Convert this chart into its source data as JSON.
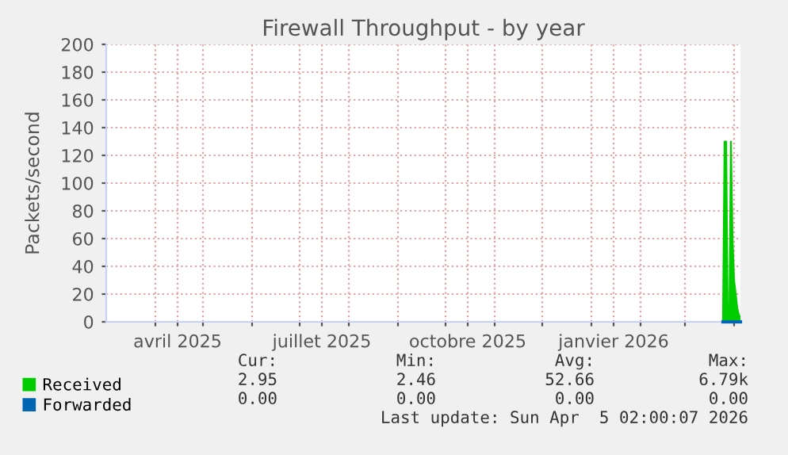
{
  "chart_data": {
    "type": "area",
    "title": "Firewall Throughput - by year",
    "ylabel": "Packets/second",
    "x": [
      "2026-03-25",
      "2026-03-26",
      "2026-03-27",
      "2026-03-28",
      "2026-03-29",
      "2026-03-30",
      "2026-03-31",
      "2026-04-01",
      "2026-04-02",
      "2026-04-03",
      "2026-04-04",
      "2026-04-05"
    ],
    "series": [
      {
        "name": "Received",
        "color": "#00cc00",
        "values": [
          0,
          130,
          130,
          3,
          3,
          130,
          60,
          30,
          20,
          10,
          5,
          3
        ]
      },
      {
        "name": "Forwarded",
        "type": "line",
        "color": "#0066b3",
        "values": [
          0,
          0,
          0,
          0,
          0,
          0,
          0,
          0,
          0,
          0,
          0,
          0
        ]
      }
    ],
    "xlim": [
      "2025-03-01",
      "2026-04-05"
    ],
    "xticks": [
      {
        "value": "2025-04-01",
        "label": null
      },
      {
        "value": "2025-04-15",
        "label": "avril 2025"
      },
      {
        "value": "2025-05-01",
        "label": null
      },
      {
        "value": "2025-06-01",
        "label": null
      },
      {
        "value": "2025-07-01",
        "label": null
      },
      {
        "value": "2025-07-15",
        "label": "juillet 2025"
      },
      {
        "value": "2025-08-01",
        "label": null
      },
      {
        "value": "2025-09-01",
        "label": null
      },
      {
        "value": "2025-10-01",
        "label": null
      },
      {
        "value": "2025-10-15",
        "label": "octobre 2025"
      },
      {
        "value": "2025-11-01",
        "label": null
      },
      {
        "value": "2025-12-01",
        "label": null
      },
      {
        "value": "2026-01-01",
        "label": null
      },
      {
        "value": "2026-01-15",
        "label": "janvier 2026"
      },
      {
        "value": "2026-02-01",
        "label": null
      },
      {
        "value": "2026-03-01",
        "label": null
      },
      {
        "value": "2026-04-01",
        "label": null
      }
    ],
    "ylim": [
      0,
      200
    ],
    "yticks": [
      0,
      20,
      40,
      60,
      80,
      100,
      120,
      140,
      160,
      180,
      200
    ],
    "grid": true,
    "legend": "bottom left",
    "annotations": [
      "Cur:",
      "Min:",
      "Avg:",
      "Max:",
      "2.95",
      "2.46",
      "52.66",
      "6.79k",
      "0.00",
      "0.00",
      "0.00",
      "0.00",
      "Last update: Sun Apr  5 02:00:07 2026"
    ]
  }
}
